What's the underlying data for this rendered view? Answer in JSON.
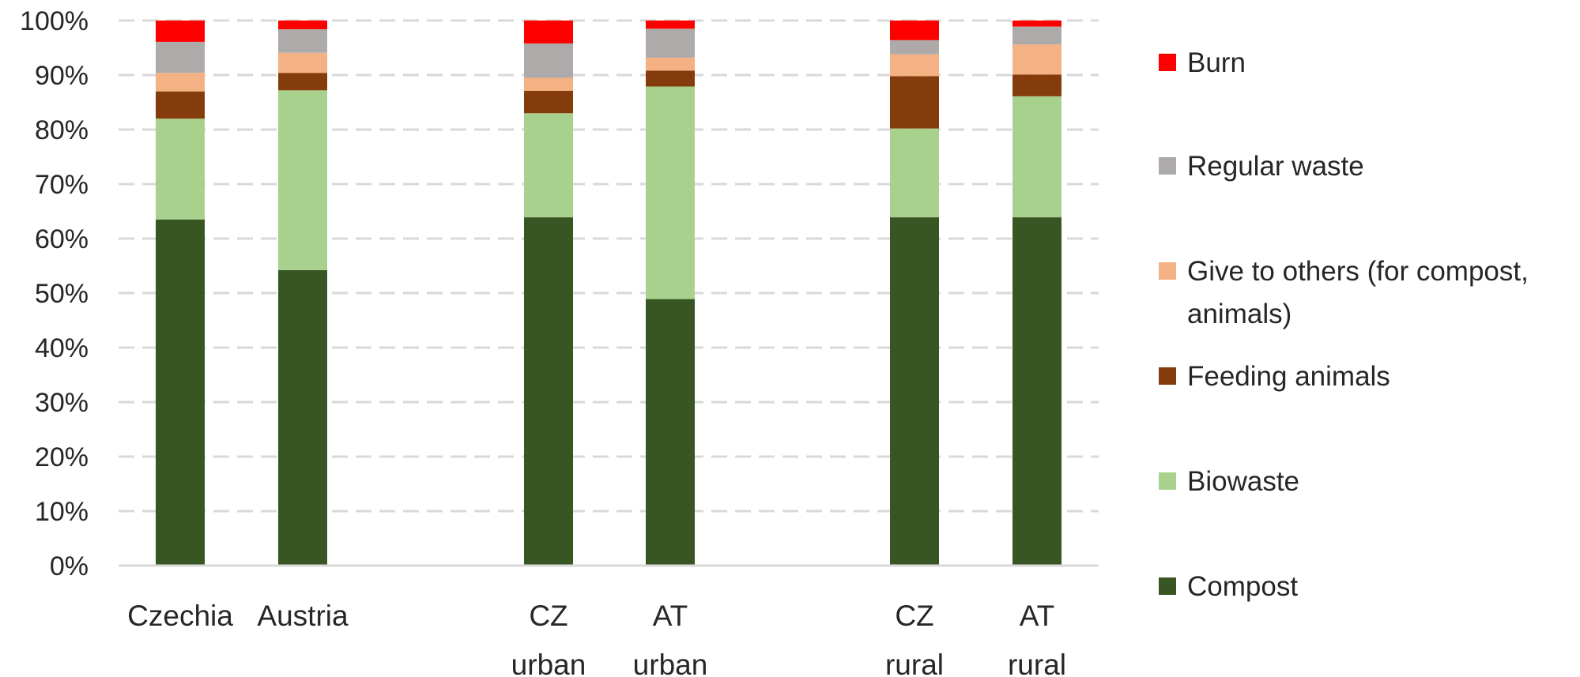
{
  "chart_data": {
    "type": "bar",
    "stacked": true,
    "percent_stacked": true,
    "title": "",
    "xlabel": "",
    "ylabel": "",
    "ylim": [
      0,
      100
    ],
    "yticks": [
      "0%",
      "10%",
      "20%",
      "30%",
      "40%",
      "50%",
      "60%",
      "70%",
      "80%",
      "90%",
      "100%"
    ],
    "grid": "horizontal-dashed",
    "legend_position": "right",
    "categories": [
      {
        "lines": [
          "Czechia"
        ],
        "group": 0
      },
      {
        "lines": [
          "Austria"
        ],
        "group": 0
      },
      {
        "lines": [
          "CZ",
          "urban"
        ],
        "group": 1
      },
      {
        "lines": [
          "AT",
          "urban"
        ],
        "group": 1
      },
      {
        "lines": [
          "CZ",
          "rural"
        ],
        "group": 2
      },
      {
        "lines": [
          "AT",
          "rural"
        ],
        "group": 2
      }
    ],
    "series": [
      {
        "name": "Compost",
        "color": "#375623",
        "values": [
          63.5,
          54.2,
          63.9,
          48.9,
          63.9,
          63.9
        ]
      },
      {
        "name": "Biowaste",
        "color": "#a9d18e",
        "values": [
          18.5,
          33.0,
          19.1,
          39.0,
          16.3,
          22.2
        ]
      },
      {
        "name": "Feeding animals",
        "color": "#843c0c",
        "values": [
          5.0,
          3.2,
          4.1,
          2.9,
          9.6,
          4.0
        ]
      },
      {
        "name": "Give to others (for compost, animals)",
        "color": "#f4b183",
        "values": [
          3.4,
          3.7,
          2.4,
          2.4,
          4.0,
          5.5
        ]
      },
      {
        "name": "Regular waste",
        "color": "#aeaaaa",
        "values": [
          5.7,
          4.3,
          6.3,
          5.3,
          2.6,
          3.3
        ]
      },
      {
        "name": "Burn",
        "color": "#ff0000",
        "values": [
          3.9,
          1.6,
          4.2,
          1.5,
          3.6,
          1.1
        ]
      }
    ],
    "legend_lines": [
      {
        "series": "Burn",
        "lines": [
          "Burn"
        ]
      },
      {
        "series": "Regular waste",
        "lines": [
          "Regular waste"
        ]
      },
      {
        "series": "Give to others (for compost, animals)",
        "lines": [
          "Give to others (for compost,",
          "animals)"
        ]
      },
      {
        "series": "Feeding animals",
        "lines": [
          "Feeding animals"
        ]
      },
      {
        "series": "Biowaste",
        "lines": [
          "Biowaste"
        ]
      },
      {
        "series": "Compost",
        "lines": [
          "Compost"
        ]
      }
    ]
  }
}
